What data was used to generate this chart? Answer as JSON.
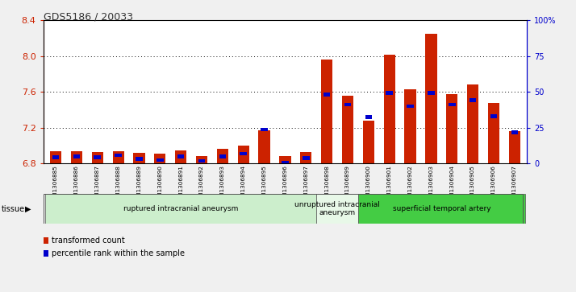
{
  "title": "GDS5186 / 20033",
  "categories": [
    "GSM1306885",
    "GSM1306886",
    "GSM1306887",
    "GSM1306888",
    "GSM1306889",
    "GSM1306890",
    "GSM1306891",
    "GSM1306892",
    "GSM1306893",
    "GSM1306894",
    "GSM1306895",
    "GSM1306896",
    "GSM1306897",
    "GSM1306898",
    "GSM1306899",
    "GSM1306900",
    "GSM1306901",
    "GSM1306902",
    "GSM1306903",
    "GSM1306904",
    "GSM1306905",
    "GSM1306906",
    "GSM1306907"
  ],
  "red_values": [
    6.94,
    6.94,
    6.93,
    6.94,
    6.92,
    6.91,
    6.95,
    6.88,
    6.96,
    7.0,
    7.17,
    6.88,
    6.93,
    7.96,
    7.56,
    7.28,
    8.02,
    7.63,
    8.25,
    7.58,
    7.68,
    7.48,
    7.16
  ],
  "blue_values": [
    6.87,
    6.88,
    6.87,
    6.89,
    6.85,
    6.84,
    6.88,
    6.83,
    6.88,
    6.91,
    7.18,
    6.81,
    6.86,
    7.57,
    7.46,
    7.32,
    7.59,
    7.44,
    7.59,
    7.46,
    7.51,
    7.33,
    7.15
  ],
  "blue_thickness": [
    0.04,
    0.04,
    0.04,
    0.04,
    0.04,
    0.04,
    0.04,
    0.04,
    0.04,
    0.04,
    0.04,
    0.04,
    0.04,
    0.04,
    0.04,
    0.04,
    0.04,
    0.04,
    0.04,
    0.04,
    0.04,
    0.04,
    0.04
  ],
  "groups": [
    {
      "label": "ruptured intracranial aneurysm",
      "start": 0,
      "end": 13,
      "color": "#cceecc"
    },
    {
      "label": "unruptured intracranial\naneurysm",
      "start": 13,
      "end": 15,
      "color": "#e8f8e8"
    },
    {
      "label": "superficial temporal artery",
      "start": 15,
      "end": 23,
      "color": "#44cc44"
    }
  ],
  "ylim": [
    6.8,
    8.4
  ],
  "y2lim": [
    0,
    100
  ],
  "bar_color": "#cc2200",
  "blue_color": "#0000cc",
  "bg_color": "#f0f0f0",
  "plot_bg": "#ffffff",
  "left_axis_color": "#cc2200",
  "right_axis_color": "#0000cc",
  "bar_width": 0.55
}
